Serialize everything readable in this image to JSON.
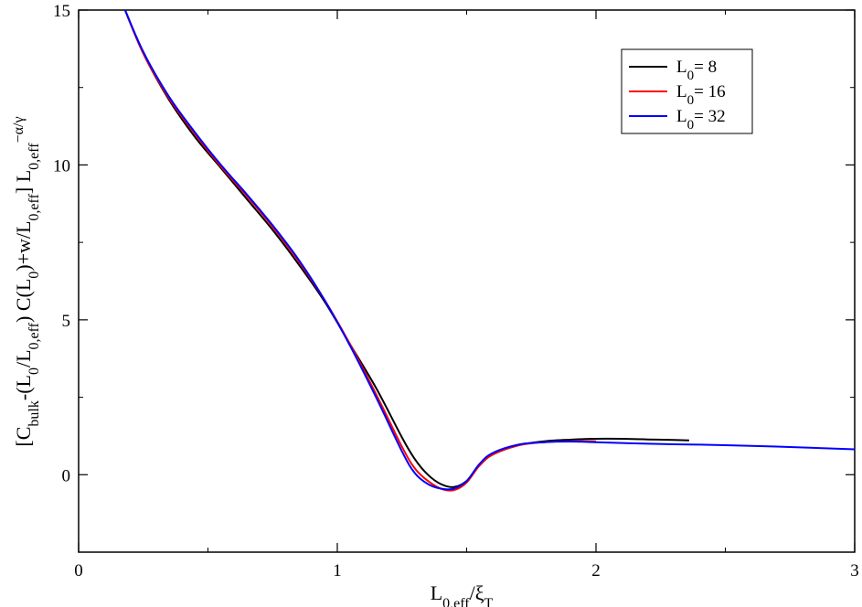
{
  "chart_data": {
    "type": "line",
    "title": "",
    "xlim": [
      0,
      3
    ],
    "ylim": [
      -2.5,
      15
    ],
    "xticks": [
      "0",
      "1",
      "2",
      "3"
    ],
    "yticks": [
      "0",
      "5",
      "10",
      "15"
    ],
    "xticks_values": [
      0,
      1,
      2,
      3
    ],
    "yticks_values": [
      0,
      5,
      10,
      15
    ],
    "xminor": [
      0.5,
      1.5,
      2.5
    ],
    "yminor": [
      2.5,
      7.5,
      12.5
    ],
    "xlabel": {
      "main": "L",
      "sub": "0,eff",
      "slash": "/ξ",
      "sub2": "T"
    },
    "ylabel": {
      "p1": "[C",
      "s1": "bulk",
      "p2": "-(L",
      "s2": "0",
      "p3": "/L",
      "s3": "0,eff",
      "p4": ") C(L",
      "s4": "0",
      "p5": ")+w/L",
      "s5": "0,eff",
      "p6": "] L",
      "s6": "0,eff",
      "sup": "−α/γ"
    },
    "grid": false,
    "legend_position": "top-right",
    "series": [
      {
        "name": "L0= 8",
        "legend_main": "L",
        "legend_sub": "0",
        "legend_rest": "=  8",
        "color": "#000000",
        "x": [
          0.17,
          0.25,
          0.35,
          0.45,
          0.55,
          0.65,
          0.75,
          0.85,
          0.95,
          1.05,
          1.15,
          1.25,
          1.3,
          1.35,
          1.4,
          1.45,
          1.5,
          1.55,
          1.6,
          1.7,
          1.8,
          1.9,
          2.0,
          2.1,
          2.2,
          2.3,
          2.36
        ],
        "values": [
          15.2,
          13.6,
          12.1,
          10.9,
          9.9,
          8.9,
          7.9,
          6.8,
          5.6,
          4.2,
          2.8,
          1.2,
          0.5,
          0.0,
          -0.3,
          -0.4,
          -0.2,
          0.3,
          0.65,
          0.95,
          1.08,
          1.13,
          1.16,
          1.16,
          1.14,
          1.12,
          1.11
        ]
      },
      {
        "name": "L0= 16",
        "legend_main": "L",
        "legend_sub": "0",
        "legend_rest": "= 16",
        "color": "#ff0000",
        "x": [
          0.17,
          0.25,
          0.35,
          0.45,
          0.55,
          0.65,
          0.75,
          0.85,
          0.95,
          1.05,
          1.15,
          1.25,
          1.3,
          1.35,
          1.4,
          1.45,
          1.5,
          1.55,
          1.6,
          1.7,
          1.8,
          1.9,
          2.0
        ],
        "values": [
          15.2,
          13.6,
          12.15,
          11.0,
          9.95,
          9.0,
          8.0,
          6.9,
          5.65,
          4.2,
          2.6,
          0.9,
          0.2,
          -0.2,
          -0.45,
          -0.5,
          -0.25,
          0.3,
          0.65,
          0.95,
          1.05,
          1.08,
          1.08
        ]
      },
      {
        "name": "L0= 32",
        "legend_main": "L",
        "legend_sub": "0",
        "legend_rest": "= 32",
        "color": "#0000ff",
        "x": [
          0.17,
          0.25,
          0.35,
          0.45,
          0.55,
          0.65,
          0.75,
          0.85,
          0.95,
          1.05,
          1.15,
          1.25,
          1.3,
          1.35,
          1.4,
          1.45,
          1.5,
          1.55,
          1.6,
          1.7,
          1.8,
          1.9,
          2.0,
          2.2,
          2.4,
          2.6,
          2.8,
          3.0
        ],
        "values": [
          15.2,
          13.65,
          12.2,
          11.05,
          10.0,
          9.05,
          8.05,
          6.95,
          5.65,
          4.15,
          2.5,
          0.75,
          0.05,
          -0.3,
          -0.45,
          -0.45,
          -0.2,
          0.35,
          0.7,
          0.97,
          1.05,
          1.07,
          1.05,
          1.0,
          0.97,
          0.93,
          0.88,
          0.82
        ]
      }
    ]
  }
}
